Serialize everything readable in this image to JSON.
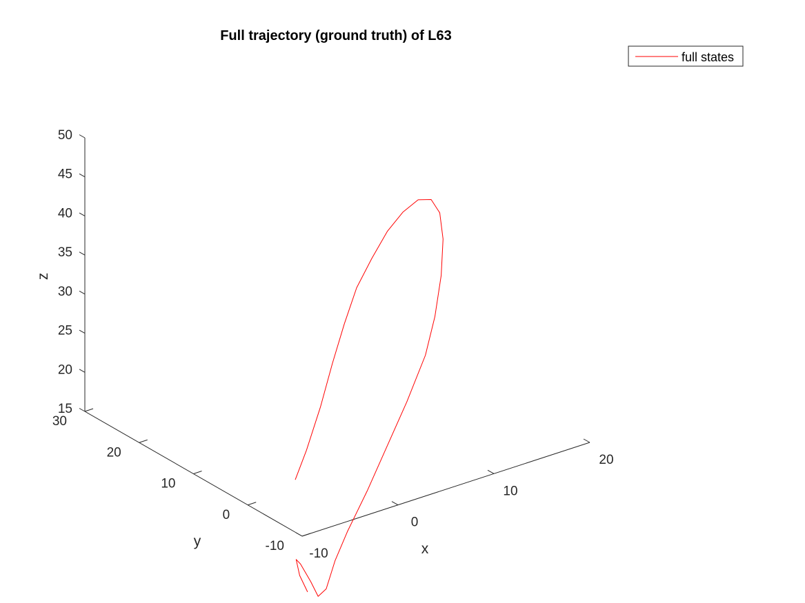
{
  "chart_data": {
    "type": "line",
    "projection": "3d",
    "title": "Full trajectory (ground truth) of L63",
    "xlabel": "x",
    "ylabel": "y",
    "zlabel": "z",
    "xlim": [
      -10,
      20
    ],
    "ylim": [
      -10,
      30
    ],
    "zlim": [
      15,
      50
    ],
    "xticks": [
      -10,
      0,
      10,
      20
    ],
    "yticks": [
      -10,
      0,
      10,
      20,
      30
    ],
    "zticks": [
      15,
      20,
      25,
      30,
      35,
      40,
      45,
      50
    ],
    "grid": false,
    "legend": {
      "position": "top-right",
      "entries": [
        "full states"
      ]
    },
    "series": [
      {
        "name": "full states",
        "color": "#ff0000",
        "points": [
          [
            -8.0,
            -5.2,
            19.5
          ],
          [
            -7.0,
            -5.5,
            23.0
          ],
          [
            -5.6,
            -5.6,
            28.0
          ],
          [
            -4.3,
            -5.5,
            33.0
          ],
          [
            -3.0,
            -5.4,
            37.5
          ],
          [
            -1.6,
            -5.2,
            41.5
          ],
          [
            0.1,
            -5.0,
            44.5
          ],
          [
            2.0,
            -4.5,
            47.0
          ],
          [
            3.9,
            -4.0,
            48.5
          ],
          [
            5.9,
            -3.3,
            49.0
          ],
          [
            7.7,
            -2.5,
            48.0
          ],
          [
            9.0,
            -1.8,
            45.5
          ],
          [
            9.8,
            -1.0,
            41.5
          ],
          [
            10.0,
            -0.3,
            36.5
          ],
          [
            9.8,
            0.5,
            31.0
          ],
          [
            9.2,
            1.2,
            26.0
          ],
          [
            8.0,
            2.5,
            20.0
          ],
          [
            6.5,
            3.5,
            14.5
          ],
          [
            5.0,
            4.5,
            9.0
          ],
          [
            3.5,
            5.5,
            4.0
          ],
          [
            2.5,
            6.0,
            0.5
          ],
          [
            1.8,
            6.4,
            -3.0
          ],
          [
            1.3,
            7.0,
            -4.0
          ],
          [
            0.7,
            7.3,
            -2.0
          ],
          [
            -0.2,
            7.6,
            0.5
          ],
          [
            -0.6,
            7.7,
            1.2
          ],
          [
            -0.4,
            7.4,
            -0.8
          ],
          [
            0.2,
            7.0,
            -3.0
          ]
        ]
      }
    ]
  }
}
